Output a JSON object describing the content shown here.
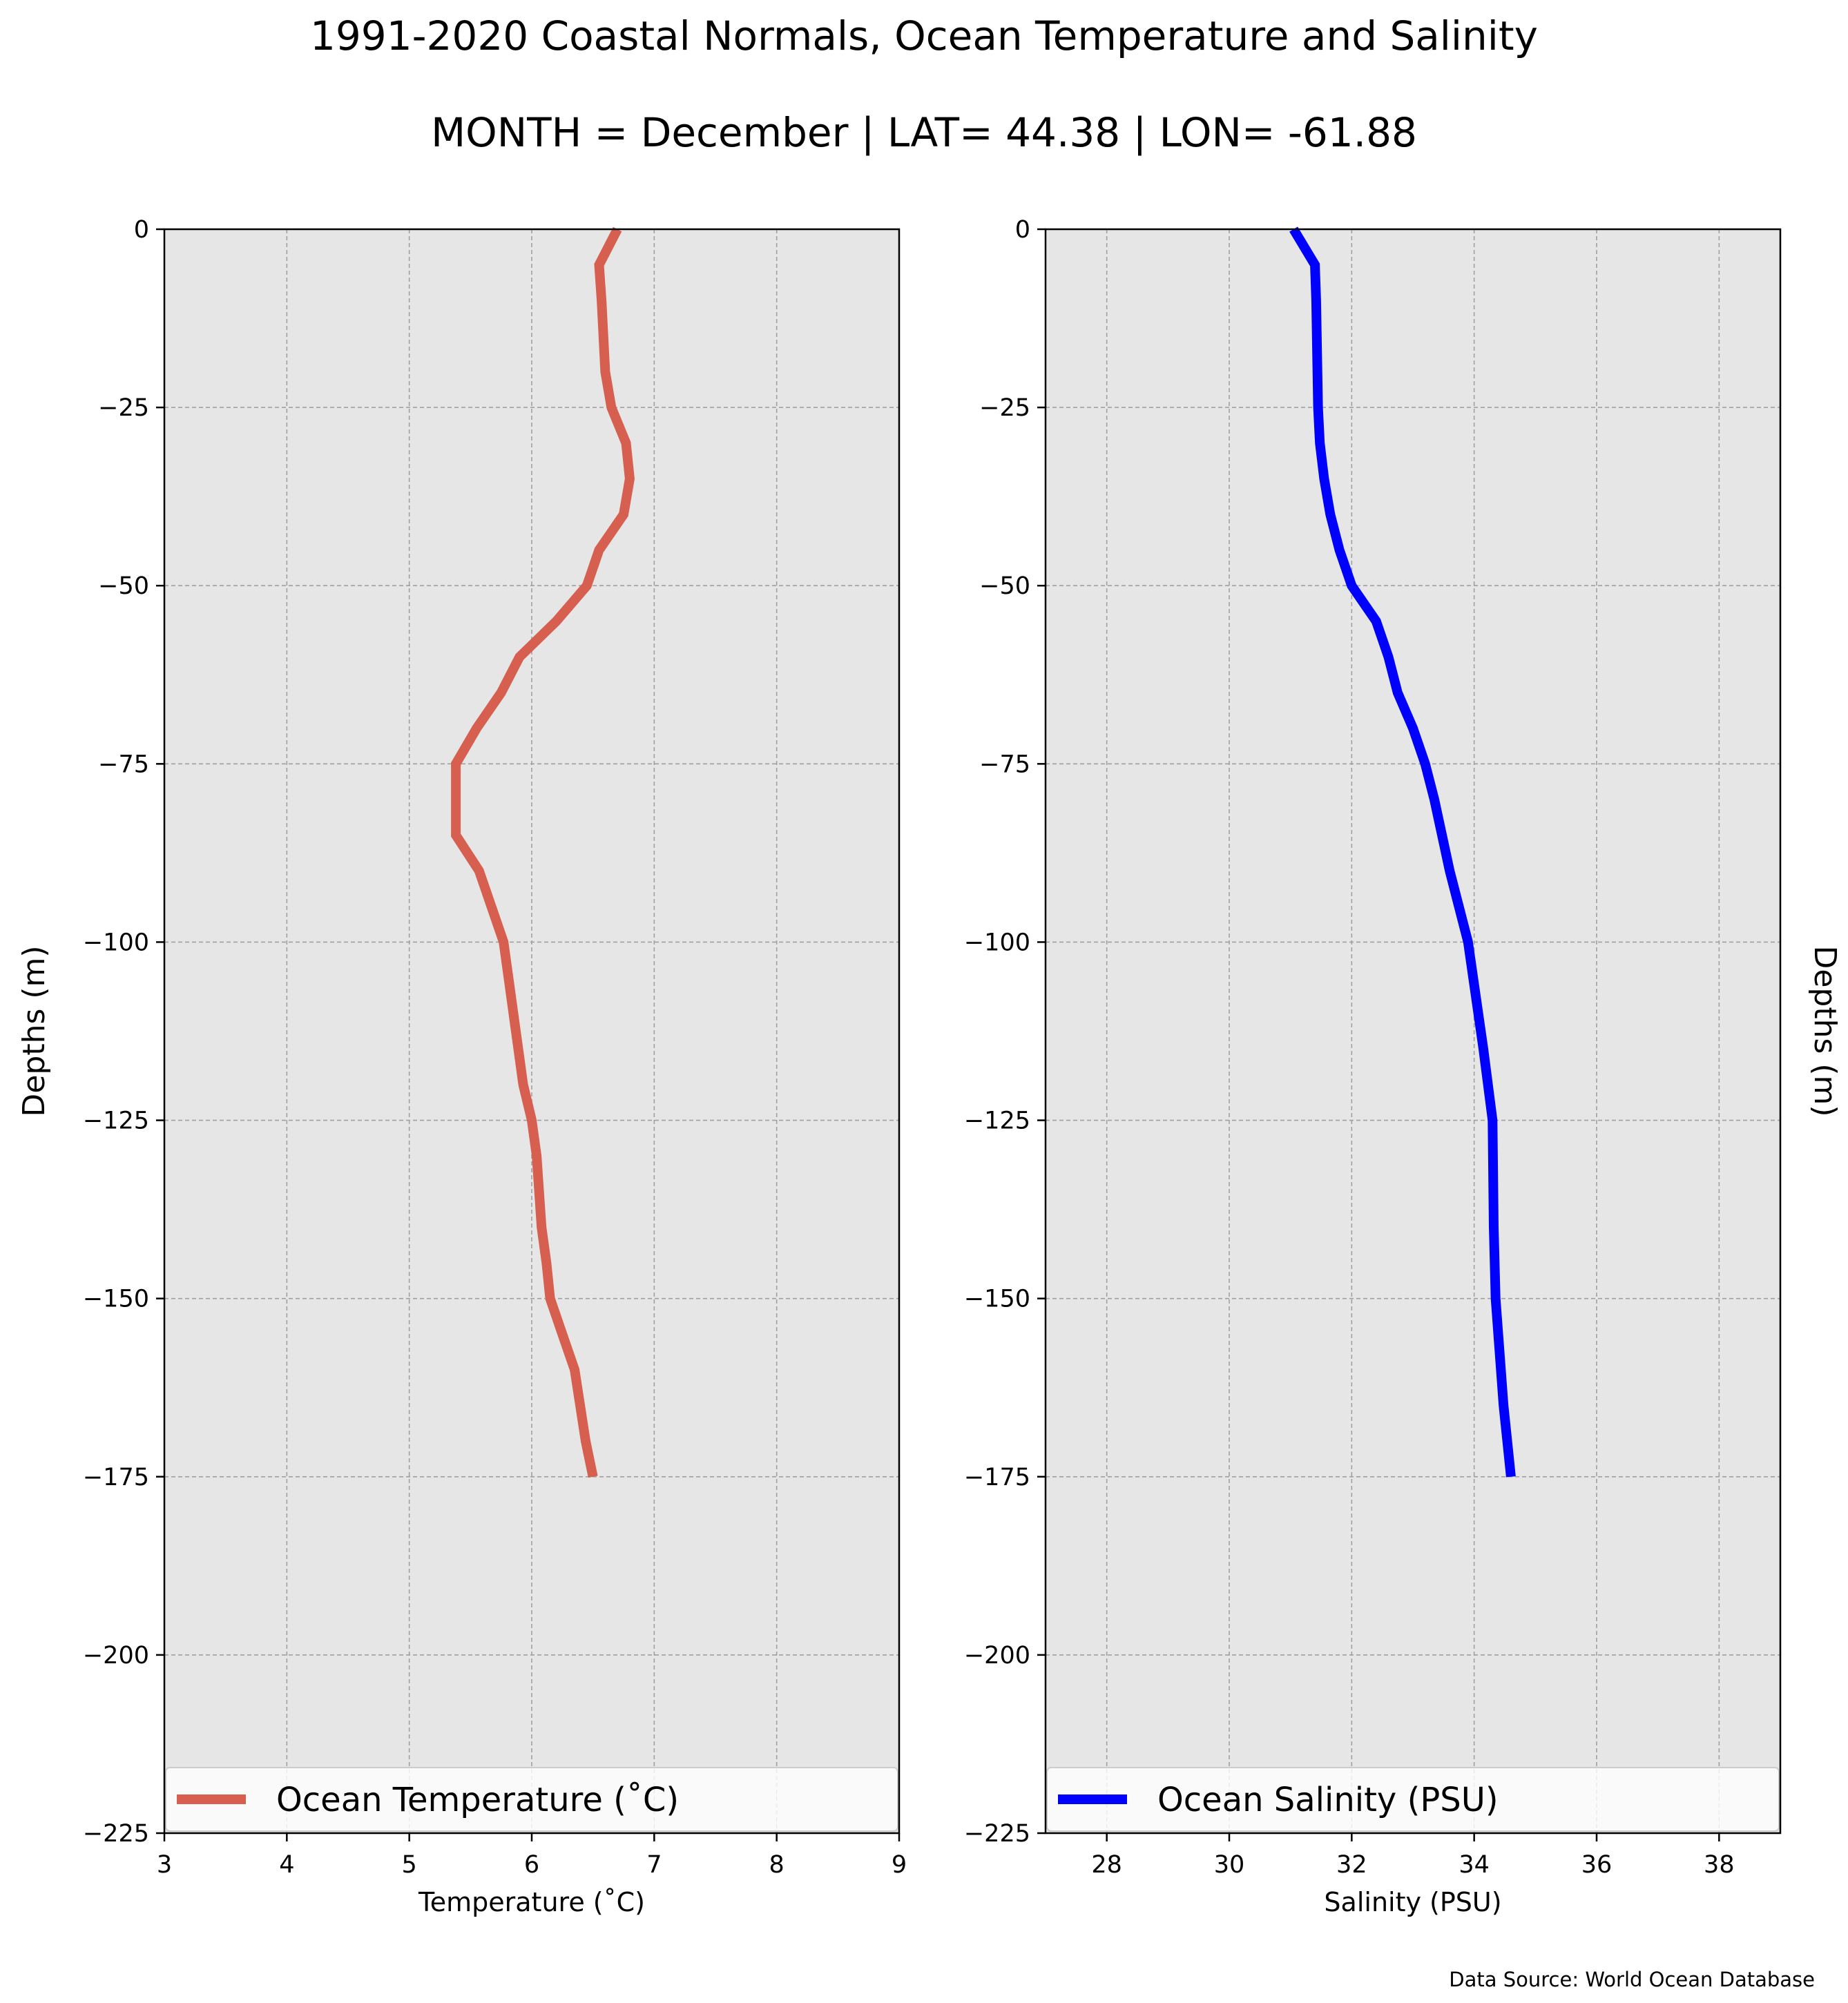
{
  "title": "1991-2020 Coastal Normals, Ocean Temperature and Salinity",
  "subtitle": "MONTH = December | LAT= 44.38 | LON= -61.88",
  "source_note": "Data Source: World Ocean Database",
  "colors": {
    "background": "#e6e6e6",
    "grid": "#a0a0a0",
    "temperature": "#d65f4f",
    "salinity": "#0000ff"
  },
  "chart_data": [
    {
      "type": "line",
      "xlabel": "Temperature ($^\\circ$C)",
      "xlabel_display": "Temperature (˚C)",
      "ylabel": "Depths (m)",
      "xlim": [
        3,
        9
      ],
      "ylim": [
        -225,
        0
      ],
      "xticks": [
        3,
        4,
        5,
        6,
        7,
        8,
        9
      ],
      "xtick_labels": [
        "3",
        "4",
        "5",
        "6",
        "7",
        "8",
        "9"
      ],
      "yticks": [
        0,
        -25,
        -50,
        -75,
        -100,
        -125,
        -150,
        -175,
        -200,
        -225
      ],
      "ytick_labels": [
        "0",
        "−25",
        "−50",
        "−75",
        "−100",
        "−125",
        "−150",
        "−175",
        "−200",
        "−225"
      ],
      "grid": true,
      "legend_position": "bottom",
      "series": [
        {
          "name": "Ocean Temperature (˚C)",
          "color": "#d65f4f",
          "x": [
            6.7,
            6.55,
            6.57,
            6.6,
            6.65,
            6.77,
            6.8,
            6.75,
            6.55,
            6.45,
            6.2,
            5.9,
            5.75,
            5.55,
            5.38,
            5.38,
            5.38,
            5.57,
            5.77,
            5.85,
            5.93,
            6.0,
            6.04,
            6.08,
            6.12,
            6.15,
            6.25,
            6.35,
            6.44,
            6.5
          ],
          "y": [
            0,
            -5,
            -10,
            -20,
            -25,
            -30,
            -35,
            -40,
            -45,
            -50,
            -55,
            -60,
            -65,
            -70,
            -75,
            -80,
            -85,
            -90,
            -100,
            -110,
            -120,
            -125,
            -130,
            -140,
            -145,
            -150,
            -155,
            -160,
            -170,
            -175
          ]
        }
      ]
    },
    {
      "type": "line",
      "xlabel": "Salinity (PSU)",
      "ylabel": "Depths (m)",
      "xlim": [
        27,
        39
      ],
      "ylim": [
        -225,
        0
      ],
      "xticks": [
        28,
        30,
        32,
        34,
        36,
        38
      ],
      "xtick_labels": [
        "28",
        "30",
        "32",
        "34",
        "36",
        "38"
      ],
      "yticks": [
        0,
        -25,
        -50,
        -75,
        -100,
        -125,
        -150,
        -175,
        -200,
        -225
      ],
      "ytick_labels": [
        "0",
        "−25",
        "−50",
        "−75",
        "−100",
        "−125",
        "−150",
        "−175",
        "−200",
        "−225"
      ],
      "grid": true,
      "legend_position": "bottom",
      "series": [
        {
          "name": "Ocean Salinity (PSU)",
          "color": "#0000ff",
          "x": [
            31.05,
            31.4,
            31.42,
            31.43,
            31.45,
            31.48,
            31.55,
            31.65,
            31.8,
            32.0,
            32.4,
            32.6,
            32.75,
            33.0,
            33.2,
            33.35,
            33.6,
            33.9,
            34.15,
            34.3,
            34.32,
            34.35,
            34.48,
            34.6
          ],
          "y": [
            0,
            -5,
            -10,
            -15,
            -25,
            -30,
            -35,
            -40,
            -45,
            -50,
            -55,
            -60,
            -65,
            -70,
            -75,
            -80,
            -90,
            -100,
            -115,
            -125,
            -140,
            -150,
            -165,
            -175
          ]
        }
      ]
    }
  ]
}
